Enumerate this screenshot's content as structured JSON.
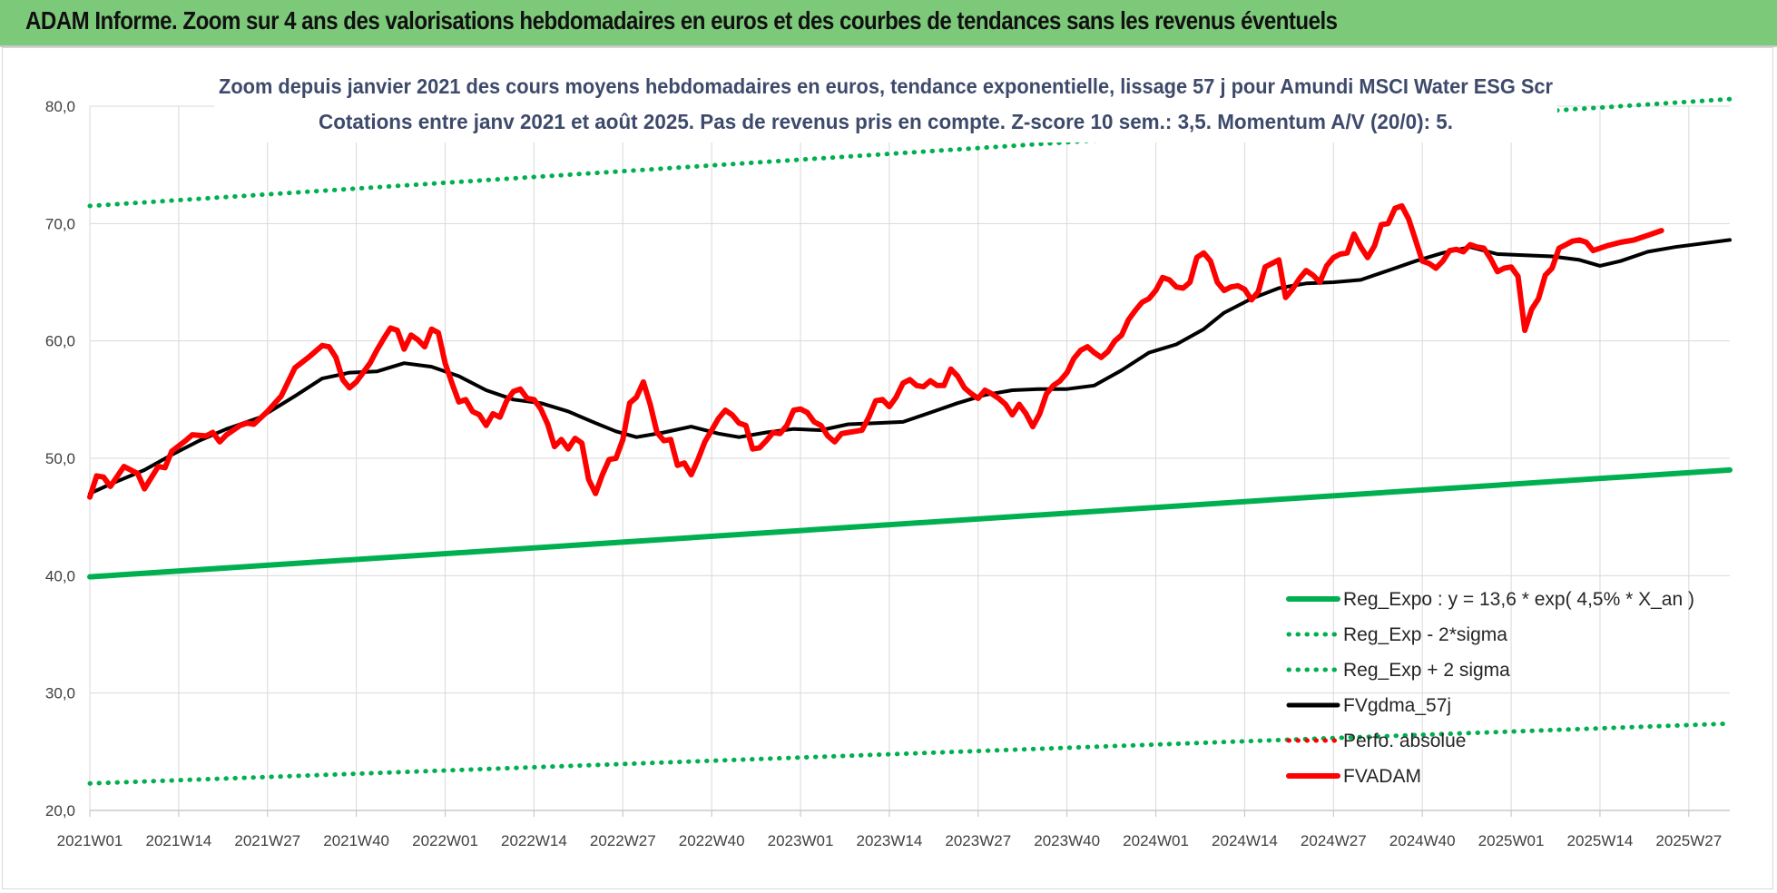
{
  "banner": {
    "title": "ADAM Informe. Zoom sur 4 ans des valorisations hebdomadaires en euros et des courbes de tendances sans les revenus éventuels"
  },
  "chart_data": {
    "type": "line",
    "title_line1": "Zoom depuis janvier 2021 des cours moyens hebdomadaires en euros, tendance exponentielle, lissage 57 j pour Amundi MSCI Water ESG Scr",
    "title_line2": "Cotations entre janv 2021 et août 2025.  Pas de revenus pris en compte.  Z-score 10 sem.: 3,5.  Momentum A/V (20/0): 5.",
    "ylim": [
      20,
      80
    ],
    "yticks": [
      "20,0",
      "30,0",
      "40,0",
      "50,0",
      "60,0",
      "70,0",
      "80,0"
    ],
    "xticks": [
      "2021W01",
      "2021W14",
      "2021W27",
      "2021W40",
      "2022W01",
      "2022W14",
      "2022W27",
      "2022W40",
      "2023W01",
      "2023W14",
      "2023W27",
      "2023W40",
      "2024W01",
      "2024W14",
      "2024W27",
      "2024W40",
      "2025W01",
      "2025W14",
      "2025W27"
    ],
    "grid": true,
    "legend_position": "bottom-right",
    "series": [
      {
        "name": "Reg_Expo : y = 13,6 * exp( 4,5% *  X_an )",
        "style": "solid",
        "color": "#00b050",
        "points": [
          [
            0,
            39.9
          ],
          [
            240,
            49.0
          ]
        ]
      },
      {
        "name": "Reg_Exp - 2*sigma",
        "style": "dotted",
        "color": "#00b050",
        "points": [
          [
            0,
            22.3
          ],
          [
            240,
            27.4
          ]
        ]
      },
      {
        "name": "Reg_Exp + 2 sigma",
        "style": "dotted",
        "color": "#00b050",
        "points": [
          [
            0,
            71.5
          ],
          [
            240,
            80.6
          ]
        ]
      },
      {
        "name": "FVgdma_57j",
        "style": "solid",
        "color": "#000000",
        "points": [
          [
            0,
            47.0
          ],
          [
            3,
            47.8
          ],
          [
            8,
            49.0
          ],
          [
            12,
            50.3
          ],
          [
            16,
            51.5
          ],
          [
            20,
            52.5
          ],
          [
            25,
            53.5
          ],
          [
            30,
            55.3
          ],
          [
            34,
            56.8
          ],
          [
            38,
            57.3
          ],
          [
            42,
            57.4
          ],
          [
            46,
            58.1
          ],
          [
            50,
            57.8
          ],
          [
            54,
            57.0
          ],
          [
            58,
            55.8
          ],
          [
            62,
            55.0
          ],
          [
            66,
            54.7
          ],
          [
            70,
            54.0
          ],
          [
            74,
            53.0
          ],
          [
            77,
            52.3
          ],
          [
            80,
            51.8
          ],
          [
            84,
            52.2
          ],
          [
            88,
            52.7
          ],
          [
            92,
            52.1
          ],
          [
            95,
            51.8
          ],
          [
            99,
            52.2
          ],
          [
            103,
            52.5
          ],
          [
            107,
            52.4
          ],
          [
            111,
            52.9
          ],
          [
            115,
            53.0
          ],
          [
            119,
            53.1
          ],
          [
            123,
            53.9
          ],
          [
            127,
            54.7
          ],
          [
            131,
            55.4
          ],
          [
            135,
            55.8
          ],
          [
            139,
            55.9
          ],
          [
            143,
            55.9
          ],
          [
            147,
            56.2
          ],
          [
            151,
            57.5
          ],
          [
            155,
            59.0
          ],
          [
            159,
            59.7
          ],
          [
            163,
            61.0
          ],
          [
            166,
            62.4
          ],
          [
            170,
            63.6
          ],
          [
            174,
            64.5
          ],
          [
            178,
            64.9
          ],
          [
            182,
            65.0
          ],
          [
            186,
            65.2
          ],
          [
            190,
            66.0
          ],
          [
            194,
            66.8
          ],
          [
            198,
            67.5
          ],
          [
            202,
            68.0
          ],
          [
            206,
            67.4
          ],
          [
            210,
            67.3
          ],
          [
            214,
            67.2
          ],
          [
            218,
            66.9
          ],
          [
            221,
            66.4
          ],
          [
            224,
            66.8
          ],
          [
            228,
            67.6
          ],
          [
            232,
            68.0
          ],
          [
            236,
            68.3
          ],
          [
            240,
            68.6
          ]
        ]
      },
      {
        "name": "Perfo. absolue",
        "style": "dotted",
        "color": "#ff0000",
        "points": []
      },
      {
        "name": "FVADAM",
        "style": "solid",
        "color": "#ff0000",
        "points": [
          [
            0,
            46.7
          ],
          [
            1,
            48.5
          ],
          [
            2,
            48.4
          ],
          [
            3,
            47.6
          ],
          [
            5,
            49.3
          ],
          [
            7,
            48.7
          ],
          [
            8,
            47.4
          ],
          [
            10,
            49.3
          ],
          [
            11,
            49.2
          ],
          [
            12,
            50.6
          ],
          [
            14,
            51.5
          ],
          [
            15,
            52.0
          ],
          [
            17,
            51.9
          ],
          [
            18,
            52.2
          ],
          [
            19,
            51.4
          ],
          [
            20,
            52.0
          ],
          [
            22,
            52.8
          ],
          [
            23,
            53.0
          ],
          [
            24,
            52.9
          ],
          [
            26,
            54.0
          ],
          [
            28,
            55.3
          ],
          [
            30,
            57.7
          ],
          [
            32,
            58.6
          ],
          [
            34,
            59.6
          ],
          [
            35,
            59.5
          ],
          [
            36,
            58.6
          ],
          [
            37,
            56.7
          ],
          [
            38,
            56.0
          ],
          [
            39,
            56.5
          ],
          [
            41,
            58.1
          ],
          [
            42,
            59.2
          ],
          [
            43,
            60.2
          ],
          [
            44,
            61.1
          ],
          [
            45,
            60.9
          ],
          [
            46,
            59.3
          ],
          [
            47,
            60.5
          ],
          [
            48,
            60.1
          ],
          [
            49,
            59.5
          ],
          [
            50,
            61.0
          ],
          [
            51,
            60.7
          ],
          [
            52,
            58.1
          ],
          [
            53,
            56.4
          ],
          [
            54,
            54.8
          ],
          [
            55,
            55.0
          ],
          [
            56,
            54.0
          ],
          [
            57,
            53.7
          ],
          [
            58,
            52.8
          ],
          [
            59,
            53.8
          ],
          [
            60,
            53.5
          ],
          [
            61,
            54.9
          ],
          [
            62,
            55.7
          ],
          [
            63,
            55.9
          ],
          [
            64,
            55.1
          ],
          [
            65,
            55.0
          ],
          [
            66,
            54.2
          ],
          [
            67,
            52.9
          ],
          [
            68,
            51.0
          ],
          [
            69,
            51.6
          ],
          [
            70,
            50.8
          ],
          [
            71,
            51.7
          ],
          [
            72,
            51.3
          ],
          [
            73,
            48.2
          ],
          [
            74,
            47.0
          ],
          [
            75,
            48.6
          ],
          [
            76,
            49.9
          ],
          [
            77,
            50.0
          ],
          [
            78,
            51.6
          ],
          [
            79,
            54.7
          ],
          [
            80,
            55.2
          ],
          [
            81,
            56.5
          ],
          [
            82,
            54.6
          ],
          [
            83,
            52.2
          ],
          [
            84,
            51.5
          ],
          [
            85,
            51.6
          ],
          [
            86,
            49.4
          ],
          [
            87,
            49.6
          ],
          [
            88,
            48.6
          ],
          [
            89,
            49.9
          ],
          [
            90,
            51.4
          ],
          [
            91,
            52.4
          ],
          [
            92,
            53.4
          ],
          [
            93,
            54.1
          ],
          [
            94,
            53.7
          ],
          [
            95,
            53.0
          ],
          [
            96,
            52.8
          ],
          [
            97,
            50.8
          ],
          [
            98,
            50.9
          ],
          [
            99,
            51.5
          ],
          [
            100,
            52.2
          ],
          [
            101,
            52.1
          ],
          [
            102,
            52.8
          ],
          [
            103,
            54.1
          ],
          [
            104,
            54.2
          ],
          [
            105,
            53.9
          ],
          [
            106,
            53.1
          ],
          [
            107,
            52.8
          ],
          [
            108,
            51.9
          ],
          [
            109,
            51.4
          ],
          [
            110,
            52.1
          ],
          [
            111,
            52.2
          ],
          [
            112,
            52.3
          ],
          [
            113,
            52.4
          ],
          [
            114,
            53.5
          ],
          [
            115,
            54.9
          ],
          [
            116,
            55.0
          ],
          [
            117,
            54.4
          ],
          [
            118,
            55.2
          ],
          [
            119,
            56.4
          ],
          [
            120,
            56.7
          ],
          [
            121,
            56.2
          ],
          [
            122,
            56.1
          ],
          [
            123,
            56.6
          ],
          [
            124,
            56.2
          ],
          [
            125,
            56.2
          ],
          [
            126,
            57.6
          ],
          [
            127,
            57.0
          ],
          [
            128,
            56.0
          ],
          [
            129,
            55.5
          ],
          [
            130,
            55.1
          ],
          [
            131,
            55.8
          ],
          [
            132,
            55.5
          ],
          [
            133,
            55.1
          ],
          [
            134,
            54.6
          ],
          [
            135,
            53.7
          ],
          [
            136,
            54.6
          ],
          [
            137,
            53.8
          ],
          [
            138,
            52.7
          ],
          [
            139,
            53.8
          ],
          [
            140,
            55.5
          ],
          [
            141,
            56.2
          ],
          [
            142,
            56.6
          ],
          [
            143,
            57.3
          ],
          [
            144,
            58.5
          ],
          [
            145,
            59.2
          ],
          [
            146,
            59.5
          ],
          [
            147,
            59.0
          ],
          [
            148,
            58.6
          ],
          [
            149,
            59.1
          ],
          [
            150,
            60.0
          ],
          [
            151,
            60.5
          ],
          [
            152,
            61.8
          ],
          [
            153,
            62.6
          ],
          [
            154,
            63.3
          ],
          [
            155,
            63.6
          ],
          [
            156,
            64.3
          ],
          [
            157,
            65.4
          ],
          [
            158,
            65.2
          ],
          [
            159,
            64.6
          ],
          [
            160,
            64.5
          ],
          [
            161,
            65.0
          ],
          [
            162,
            67.1
          ],
          [
            163,
            67.5
          ],
          [
            164,
            66.8
          ],
          [
            165,
            65.0
          ],
          [
            166,
            64.3
          ],
          [
            167,
            64.6
          ],
          [
            168,
            64.7
          ],
          [
            169,
            64.4
          ],
          [
            170,
            63.5
          ],
          [
            171,
            64.2
          ],
          [
            172,
            66.3
          ],
          [
            173,
            66.6
          ],
          [
            174,
            66.9
          ],
          [
            175,
            63.7
          ],
          [
            176,
            64.4
          ],
          [
            177,
            65.3
          ],
          [
            178,
            66.0
          ],
          [
            179,
            65.6
          ],
          [
            180,
            65.0
          ],
          [
            181,
            66.4
          ],
          [
            182,
            67.1
          ],
          [
            183,
            67.4
          ],
          [
            184,
            67.5
          ],
          [
            185,
            69.1
          ],
          [
            186,
            68.0
          ],
          [
            187,
            67.1
          ],
          [
            188,
            68.1
          ],
          [
            189,
            69.9
          ],
          [
            190,
            70.0
          ],
          [
            191,
            71.3
          ],
          [
            192,
            71.5
          ],
          [
            193,
            70.4
          ],
          [
            194,
            68.6
          ],
          [
            195,
            66.8
          ],
          [
            196,
            66.6
          ],
          [
            197,
            66.2
          ],
          [
            198,
            66.8
          ],
          [
            199,
            67.7
          ],
          [
            200,
            67.8
          ],
          [
            201,
            67.6
          ],
          [
            202,
            68.2
          ],
          [
            203,
            68.0
          ],
          [
            204,
            67.9
          ],
          [
            205,
            67.0
          ],
          [
            206,
            65.9
          ],
          [
            207,
            66.2
          ],
          [
            208,
            66.3
          ],
          [
            209,
            65.5
          ],
          [
            210,
            60.9
          ],
          [
            211,
            62.7
          ],
          [
            212,
            63.6
          ],
          [
            213,
            65.6
          ],
          [
            214,
            66.2
          ],
          [
            215,
            67.9
          ],
          [
            216,
            68.2
          ],
          [
            217,
            68.5
          ],
          [
            218,
            68.6
          ],
          [
            219,
            68.4
          ],
          [
            220,
            67.7
          ],
          [
            222,
            68.1
          ],
          [
            224,
            68.4
          ],
          [
            226,
            68.6
          ],
          [
            228,
            69.0
          ],
          [
            230,
            69.4
          ]
        ]
      }
    ]
  }
}
